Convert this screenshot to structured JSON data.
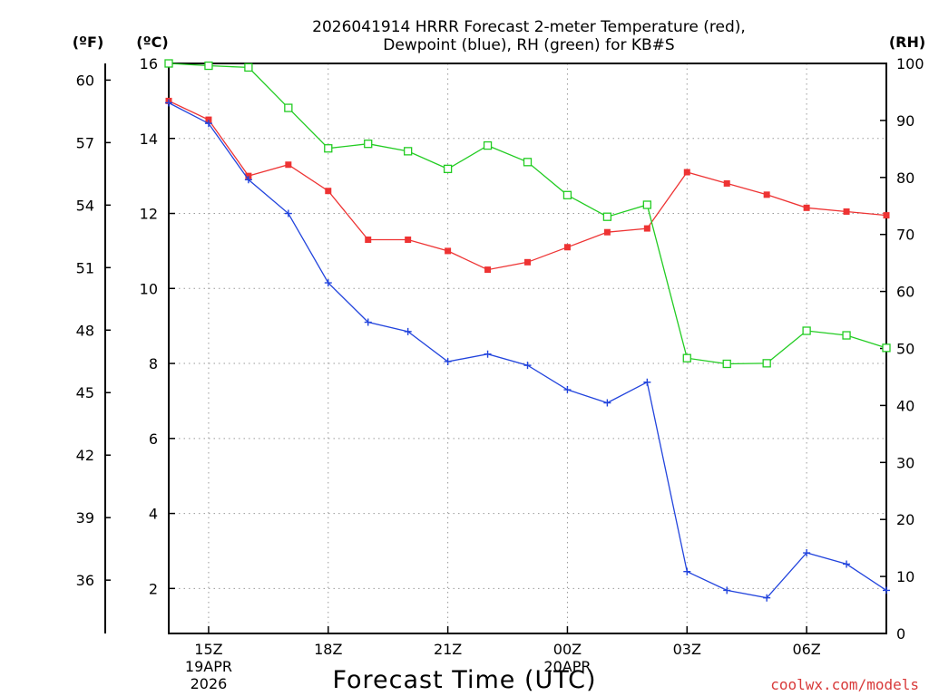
{
  "chart_data": {
    "type": "line",
    "title_line1": "2026041914 HRRR Forecast 2-meter Temperature (red),",
    "title_line2": "Dewpoint (blue), RH (green) for KB#S",
    "xlabel": "Forecast Time (UTC)",
    "credit": "coolwx.com/models",
    "left_unit_f": "(ºF)",
    "left_unit_c": "(ºC)",
    "right_unit": "(RH)",
    "celsius_axis": {
      "range": [
        0.8,
        16
      ],
      "ticks": [
        "2",
        "4",
        "6",
        "8",
        "10",
        "12",
        "14",
        "16"
      ]
    },
    "fahrenheit_axis": {
      "range": [
        33.44,
        60.8
      ],
      "ticks": [
        "36",
        "39",
        "42",
        "45",
        "48",
        "51",
        "54",
        "57",
        "60"
      ]
    },
    "rh_axis": {
      "range": [
        0,
        100
      ],
      "ticks": [
        "0",
        "10",
        "20",
        "30",
        "40",
        "50",
        "60",
        "70",
        "80",
        "90",
        "100"
      ]
    },
    "x_range_hours": [
      14,
      32
    ],
    "x_ticks": [
      {
        "hour": 15,
        "label": "15Z",
        "date": "19APR",
        "year": "2026"
      },
      {
        "hour": 18,
        "label": "18Z",
        "date": "",
        "year": ""
      },
      {
        "hour": 21,
        "label": "21Z",
        "date": "",
        "year": ""
      },
      {
        "hour": 24,
        "label": "00Z",
        "date": "20APR",
        "year": ""
      },
      {
        "hour": 27,
        "label": "03Z",
        "date": "",
        "year": ""
      },
      {
        "hour": 30,
        "label": "06Z",
        "date": "",
        "year": ""
      }
    ],
    "hours": [
      14,
      15,
      16,
      17,
      18,
      19,
      20,
      21,
      22,
      23,
      24,
      25,
      26,
      27,
      28,
      29,
      30,
      31,
      32
    ],
    "series": [
      {
        "name": "2-meter Temperature",
        "axis": "celsius",
        "color": "#ee3333",
        "marker": "filled-square",
        "values": [
          15.0,
          14.5,
          13.0,
          13.3,
          12.6,
          11.3,
          11.3,
          11.0,
          10.5,
          10.7,
          11.1,
          11.5,
          11.6,
          13.1,
          12.8,
          12.5,
          12.15,
          12.05,
          11.95
        ]
      },
      {
        "name": "Dewpoint",
        "axis": "celsius",
        "color": "#2244dd",
        "marker": "plus",
        "values": [
          14.95,
          14.4,
          12.9,
          12.0,
          10.15,
          9.1,
          8.85,
          8.05,
          8.25,
          7.95,
          7.3,
          6.95,
          7.5,
          2.45,
          1.95,
          1.75,
          2.95,
          2.65,
          1.95
        ]
      },
      {
        "name": "RH",
        "axis": "rh",
        "color": "#22cc22",
        "marker": "open-square",
        "values": [
          100,
          99.6,
          99.3,
          92.2,
          85.1,
          85.9,
          84.6,
          81.5,
          85.6,
          82.7,
          76.9,
          73.1,
          75.2,
          48.3,
          47.3,
          47.4,
          53.1,
          52.3,
          50.1
        ]
      }
    ]
  }
}
